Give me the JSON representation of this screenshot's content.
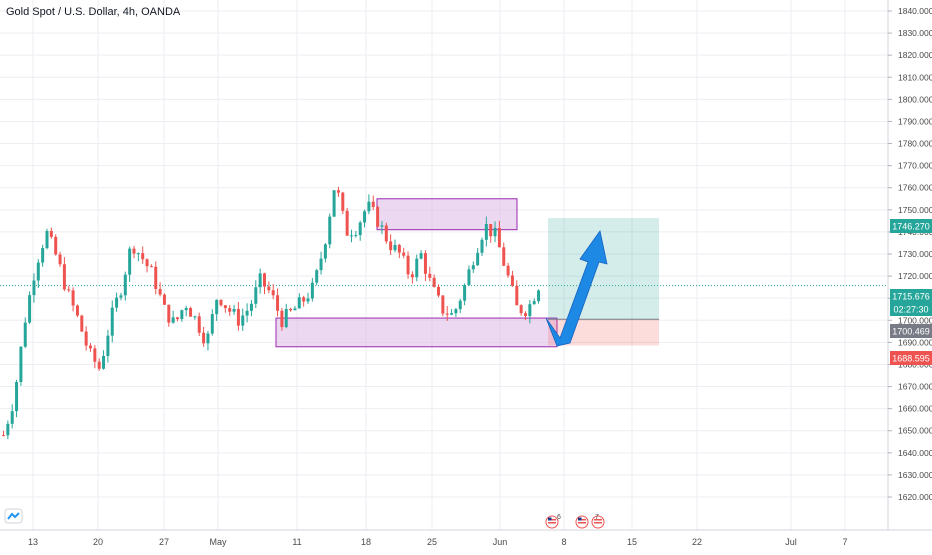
{
  "header": {
    "title": "Gold Spot / U.S. Dollar, 4h, OANDA"
  },
  "colors": {
    "up": "#26a69a",
    "down": "#ef5350",
    "grid": "#eceef3",
    "axis_text": "#4a4a4a",
    "current_price": "#26a69a",
    "target": "#26a69a",
    "stop": "#ef5350",
    "entry": "#787b86",
    "zone_fill": "#e1bee7",
    "zone_border": "#9c27b0",
    "arrow": "#1e88e5"
  },
  "logo_icon": "tradingview-logo-icon",
  "chart_data": {
    "type": "candlestick",
    "symbol": "XAUUSD",
    "interval": "4h",
    "ylim": [
      1615,
      1845
    ],
    "y_ticks": [
      1620,
      1630,
      1640,
      1650,
      1660,
      1670,
      1680,
      1690,
      1700,
      1710,
      1720,
      1730,
      1740,
      1750,
      1760,
      1770,
      1780,
      1790,
      1800,
      1810,
      1820,
      1830,
      1840
    ],
    "y_tick_labels": [
      "1620.000",
      "1630.000",
      "1640.000",
      "1650.000",
      "1660.000",
      "1670.000",
      "1680.000",
      "1690.000",
      "1700.000",
      "1710.000",
      "1720.000",
      "1730.000",
      "1740.000",
      "1750.000",
      "1760.000",
      "1770.000",
      "1780.000",
      "1790.000",
      "1800.000",
      "1810.000",
      "1820.000",
      "1830.000",
      "1840.000"
    ],
    "x_ticks": [
      "13",
      "20",
      "27",
      "May",
      "11",
      "18",
      "25",
      "Jun",
      "8",
      "15",
      "22",
      "Jul",
      "7"
    ],
    "approx_closes": [
      1648,
      1665,
      1700,
      1725,
      1740,
      1728,
      1712,
      1700,
      1685,
      1678,
      1700,
      1715,
      1735,
      1728,
      1720,
      1705,
      1698,
      1708,
      1700,
      1690,
      1712,
      1705,
      1700,
      1706,
      1718,
      1712,
      1700,
      1704,
      1709,
      1715,
      1735,
      1763,
      1740,
      1742,
      1752,
      1745,
      1735,
      1730,
      1720,
      1730,
      1715,
      1705,
      1702,
      1714,
      1730,
      1743,
      1738,
      1722,
      1705,
      1705,
      1716
    ],
    "current_price": {
      "label": "1715.676",
      "value": 1715.676,
      "countdown": "02:27:30"
    },
    "position": {
      "type": "long",
      "entry": {
        "label": "1700.469",
        "value": 1700.469
      },
      "target": {
        "label": "1746.270",
        "value": 1746.27
      },
      "stop": {
        "label": "1688.595",
        "value": 1688.595
      }
    },
    "zones": [
      {
        "name": "supply-zone",
        "top": 1755,
        "bottom": 1741
      },
      {
        "name": "demand-zone",
        "top": 1701,
        "bottom": 1688
      }
    ],
    "events": [
      {
        "flag_icon": "us-flag-icon",
        "count": "6"
      },
      {
        "flag_icon": "us-flag-icon",
        "count": "7"
      }
    ]
  }
}
